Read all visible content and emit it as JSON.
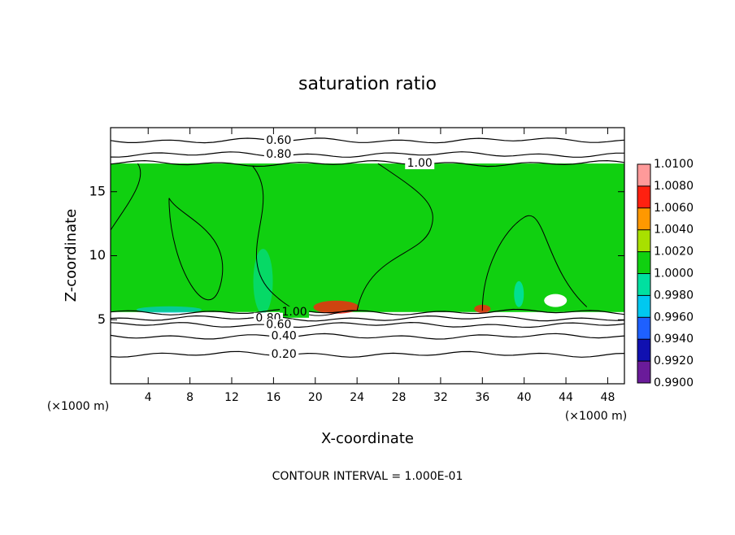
{
  "chart_data": {
    "type": "contour",
    "title": "saturation ratio",
    "x_label": "X-coordinate",
    "y_label": "Z-coordinate",
    "x_units": "(×1000 m)",
    "footer": "CONTOUR INTERVAL = 1.000E-01",
    "xlim": [
      0.4,
      49.6
    ],
    "xticks": [
      4,
      8,
      12,
      16,
      20,
      24,
      28,
      32,
      36,
      40,
      44,
      48
    ],
    "ylim": [
      0,
      20
    ],
    "yticks": [
      5,
      10,
      15
    ],
    "contours": [
      {
        "label": "0.60",
        "z": 19.0
      },
      {
        "label": "0.80",
        "z": 17.9
      },
      {
        "label": "1.00",
        "z": 17.2
      },
      {
        "label": "1.00",
        "z": 5.6
      },
      {
        "label": "0.80",
        "z": 5.1
      },
      {
        "label": "0.60",
        "z": 4.6
      },
      {
        "label": "0.40",
        "z": 3.7
      },
      {
        "label": "0.20",
        "z": 2.3
      }
    ],
    "colorbar": {
      "ticks": [
        {
          "value": 0.99,
          "label": "0.9900"
        },
        {
          "value": 0.992,
          "label": "0.9920"
        },
        {
          "value": 0.994,
          "label": "0.9940"
        },
        {
          "value": 0.996,
          "label": "0.9960"
        },
        {
          "value": 0.998,
          "label": "0.9980"
        },
        {
          "value": 1.0,
          "label": "1.0000"
        },
        {
          "value": 1.002,
          "label": "1.0020"
        },
        {
          "value": 1.004,
          "label": "1.0040"
        },
        {
          "value": 1.006,
          "label": "1.0060"
        },
        {
          "value": 1.008,
          "label": "1.0080"
        },
        {
          "value": 1.01,
          "label": "1.0100"
        }
      ],
      "colors": [
        "#6a1b9a",
        "#1010b0",
        "#1e60ff",
        "#00c8f0",
        "#00e0a0",
        "#10d010",
        "#a8e000",
        "#ff9800",
        "#ff2010",
        "#ff9a9a"
      ]
    }
  }
}
